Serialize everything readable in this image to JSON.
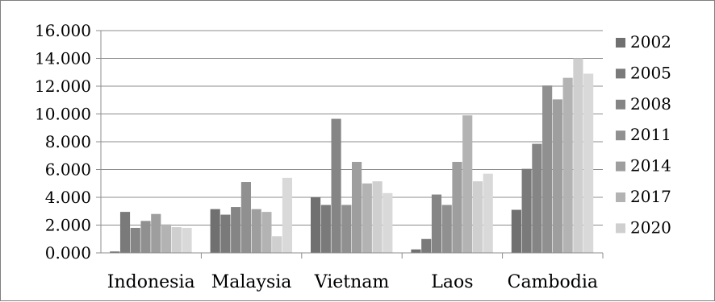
{
  "chart_data": {
    "type": "bar",
    "title": "",
    "xlabel": "",
    "ylabel": "",
    "categories": [
      "Indonesia",
      "Malaysia",
      "Vietnam",
      "Laos",
      "Cambodia"
    ],
    "ylim": [
      0,
      16
    ],
    "yticks": [
      0,
      2,
      4,
      6,
      8,
      10,
      12,
      14,
      16
    ],
    "ytick_labels": [
      "0.000",
      "2.000",
      "4.000",
      "6.000",
      "8.000",
      "10.000",
      "12.000",
      "14.000",
      "16.000"
    ],
    "grid": true,
    "legend_position": "right",
    "series": [
      {
        "name": "2002",
        "color": "#707070",
        "values": [
          0.1,
          3.15,
          4.0,
          0.25,
          3.1
        ]
      },
      {
        "name": "2005",
        "color": "#7a7a7a",
        "values": [
          2.95,
          2.75,
          3.45,
          1.0,
          6.05
        ]
      },
      {
        "name": "2008",
        "color": "#858585",
        "values": [
          1.8,
          3.3,
          9.65,
          4.2,
          7.85
        ]
      },
      {
        "name": "2011",
        "color": "#909090",
        "values": [
          2.3,
          5.1,
          3.45,
          3.45,
          12.05
        ]
      },
      {
        "name": "2014",
        "color": "#9e9e9e",
        "values": [
          2.8,
          3.15,
          6.55,
          6.55,
          11.05
        ]
      },
      {
        "name": "2017",
        "color": "#b3b3b3",
        "values": [
          2.05,
          2.95,
          5.0,
          9.9,
          12.6
        ]
      },
      {
        "name": "2020",
        "color": "#cfcfcf",
        "values": [
          1.85,
          1.2,
          5.15,
          5.15,
          14.0
        ]
      },
      {
        "name": "",
        "color": "#d9d9d9",
        "values": [
          1.8,
          5.4,
          4.3,
          5.7,
          12.9
        ]
      }
    ]
  }
}
